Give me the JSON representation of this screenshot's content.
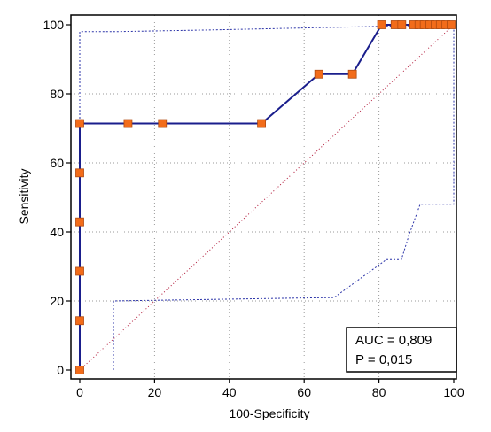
{
  "chart_data": {
    "type": "line",
    "title": "",
    "xlabel": "100-Specificity",
    "ylabel": "Sensitivity",
    "xlim": [
      0,
      100
    ],
    "ylim": [
      0,
      100
    ],
    "x_ticks": [
      "0",
      "20",
      "40",
      "60",
      "80",
      "100"
    ],
    "y_ticks": [
      "0",
      "20",
      "40",
      "60",
      "80",
      "100"
    ],
    "grid": true,
    "series": [
      {
        "values_x": [
          0,
          0,
          0,
          0,
          0,
          0,
          12.9,
          22.1,
          48.6,
          63.9,
          72.9,
          80.7,
          84.3,
          86.1,
          89.3,
          90.7,
          92.1,
          93.6,
          95.0,
          96.4,
          97.9,
          99.3
        ],
        "values_y": [
          0,
          14.3,
          28.6,
          42.9,
          57.1,
          71.4,
          71.4,
          71.4,
          71.4,
          85.7,
          85.7,
          100,
          100,
          100,
          100,
          100,
          100,
          100,
          100,
          100,
          100,
          100
        ],
        "color": "#1a1e8c",
        "marker_color": "#f26c1a"
      }
    ],
    "reference_line": {
      "x": [
        0,
        100
      ],
      "y": [
        0,
        100
      ],
      "color": "#b21a3a"
    },
    "confidence_upper": {
      "x": [
        0,
        0,
        9,
        35,
        100,
        100
      ],
      "y": [
        0,
        98,
        98,
        98.5,
        100,
        100
      ],
      "color": "#2b33a8"
    },
    "confidence_lower": {
      "x": [
        9,
        9,
        68,
        82,
        86,
        88,
        91,
        100,
        100
      ],
      "y": [
        0,
        20,
        21,
        32,
        32,
        39,
        48,
        48,
        100
      ],
      "color": "#2b33a8"
    },
    "legend_position": "bottom-right",
    "annotation": {
      "lines": [
        "AUC = 0,809",
        "P = 0,015"
      ]
    }
  }
}
